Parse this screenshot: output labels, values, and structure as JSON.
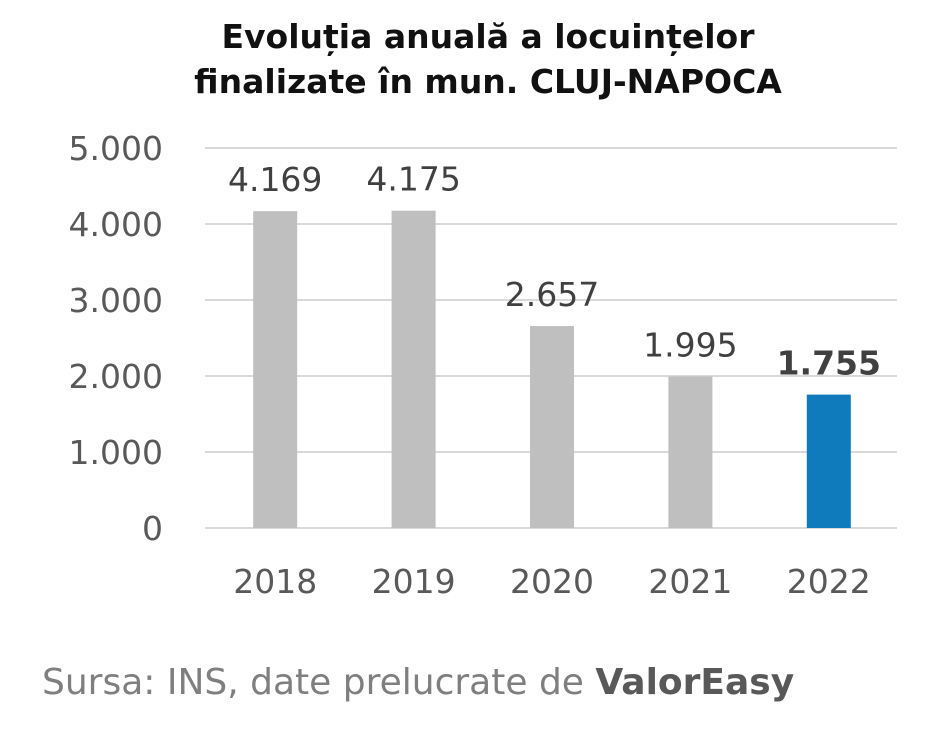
{
  "chart_data": {
    "type": "bar",
    "title_lines": [
      "Evoluția anuală a locuințelor",
      "finalizate în mun. CLUJ-NAPOCA"
    ],
    "categories": [
      "2018",
      "2019",
      "2020",
      "2021",
      "2022"
    ],
    "values": [
      4169,
      4175,
      2657,
      1995,
      1755
    ],
    "value_labels": [
      "4.169",
      "4.175",
      "2.657",
      "1.995",
      "1.755"
    ],
    "highlight_index": 4,
    "ylim": [
      0,
      5000
    ],
    "yticks": [
      0,
      1000,
      2000,
      3000,
      4000,
      5000
    ],
    "ytick_labels": [
      "0",
      "1.000",
      "2.000",
      "3.000",
      "4.000",
      "5.000"
    ],
    "grid": true,
    "xlabel": "",
    "ylabel": "",
    "colors": {
      "default": "#bfbfbf",
      "highlight": "#0f7bbd",
      "grid": "#d9d9d9"
    }
  },
  "source": {
    "prefix": "Sursa: INS, date prelucrate de ",
    "brand": "ValorEasy"
  }
}
